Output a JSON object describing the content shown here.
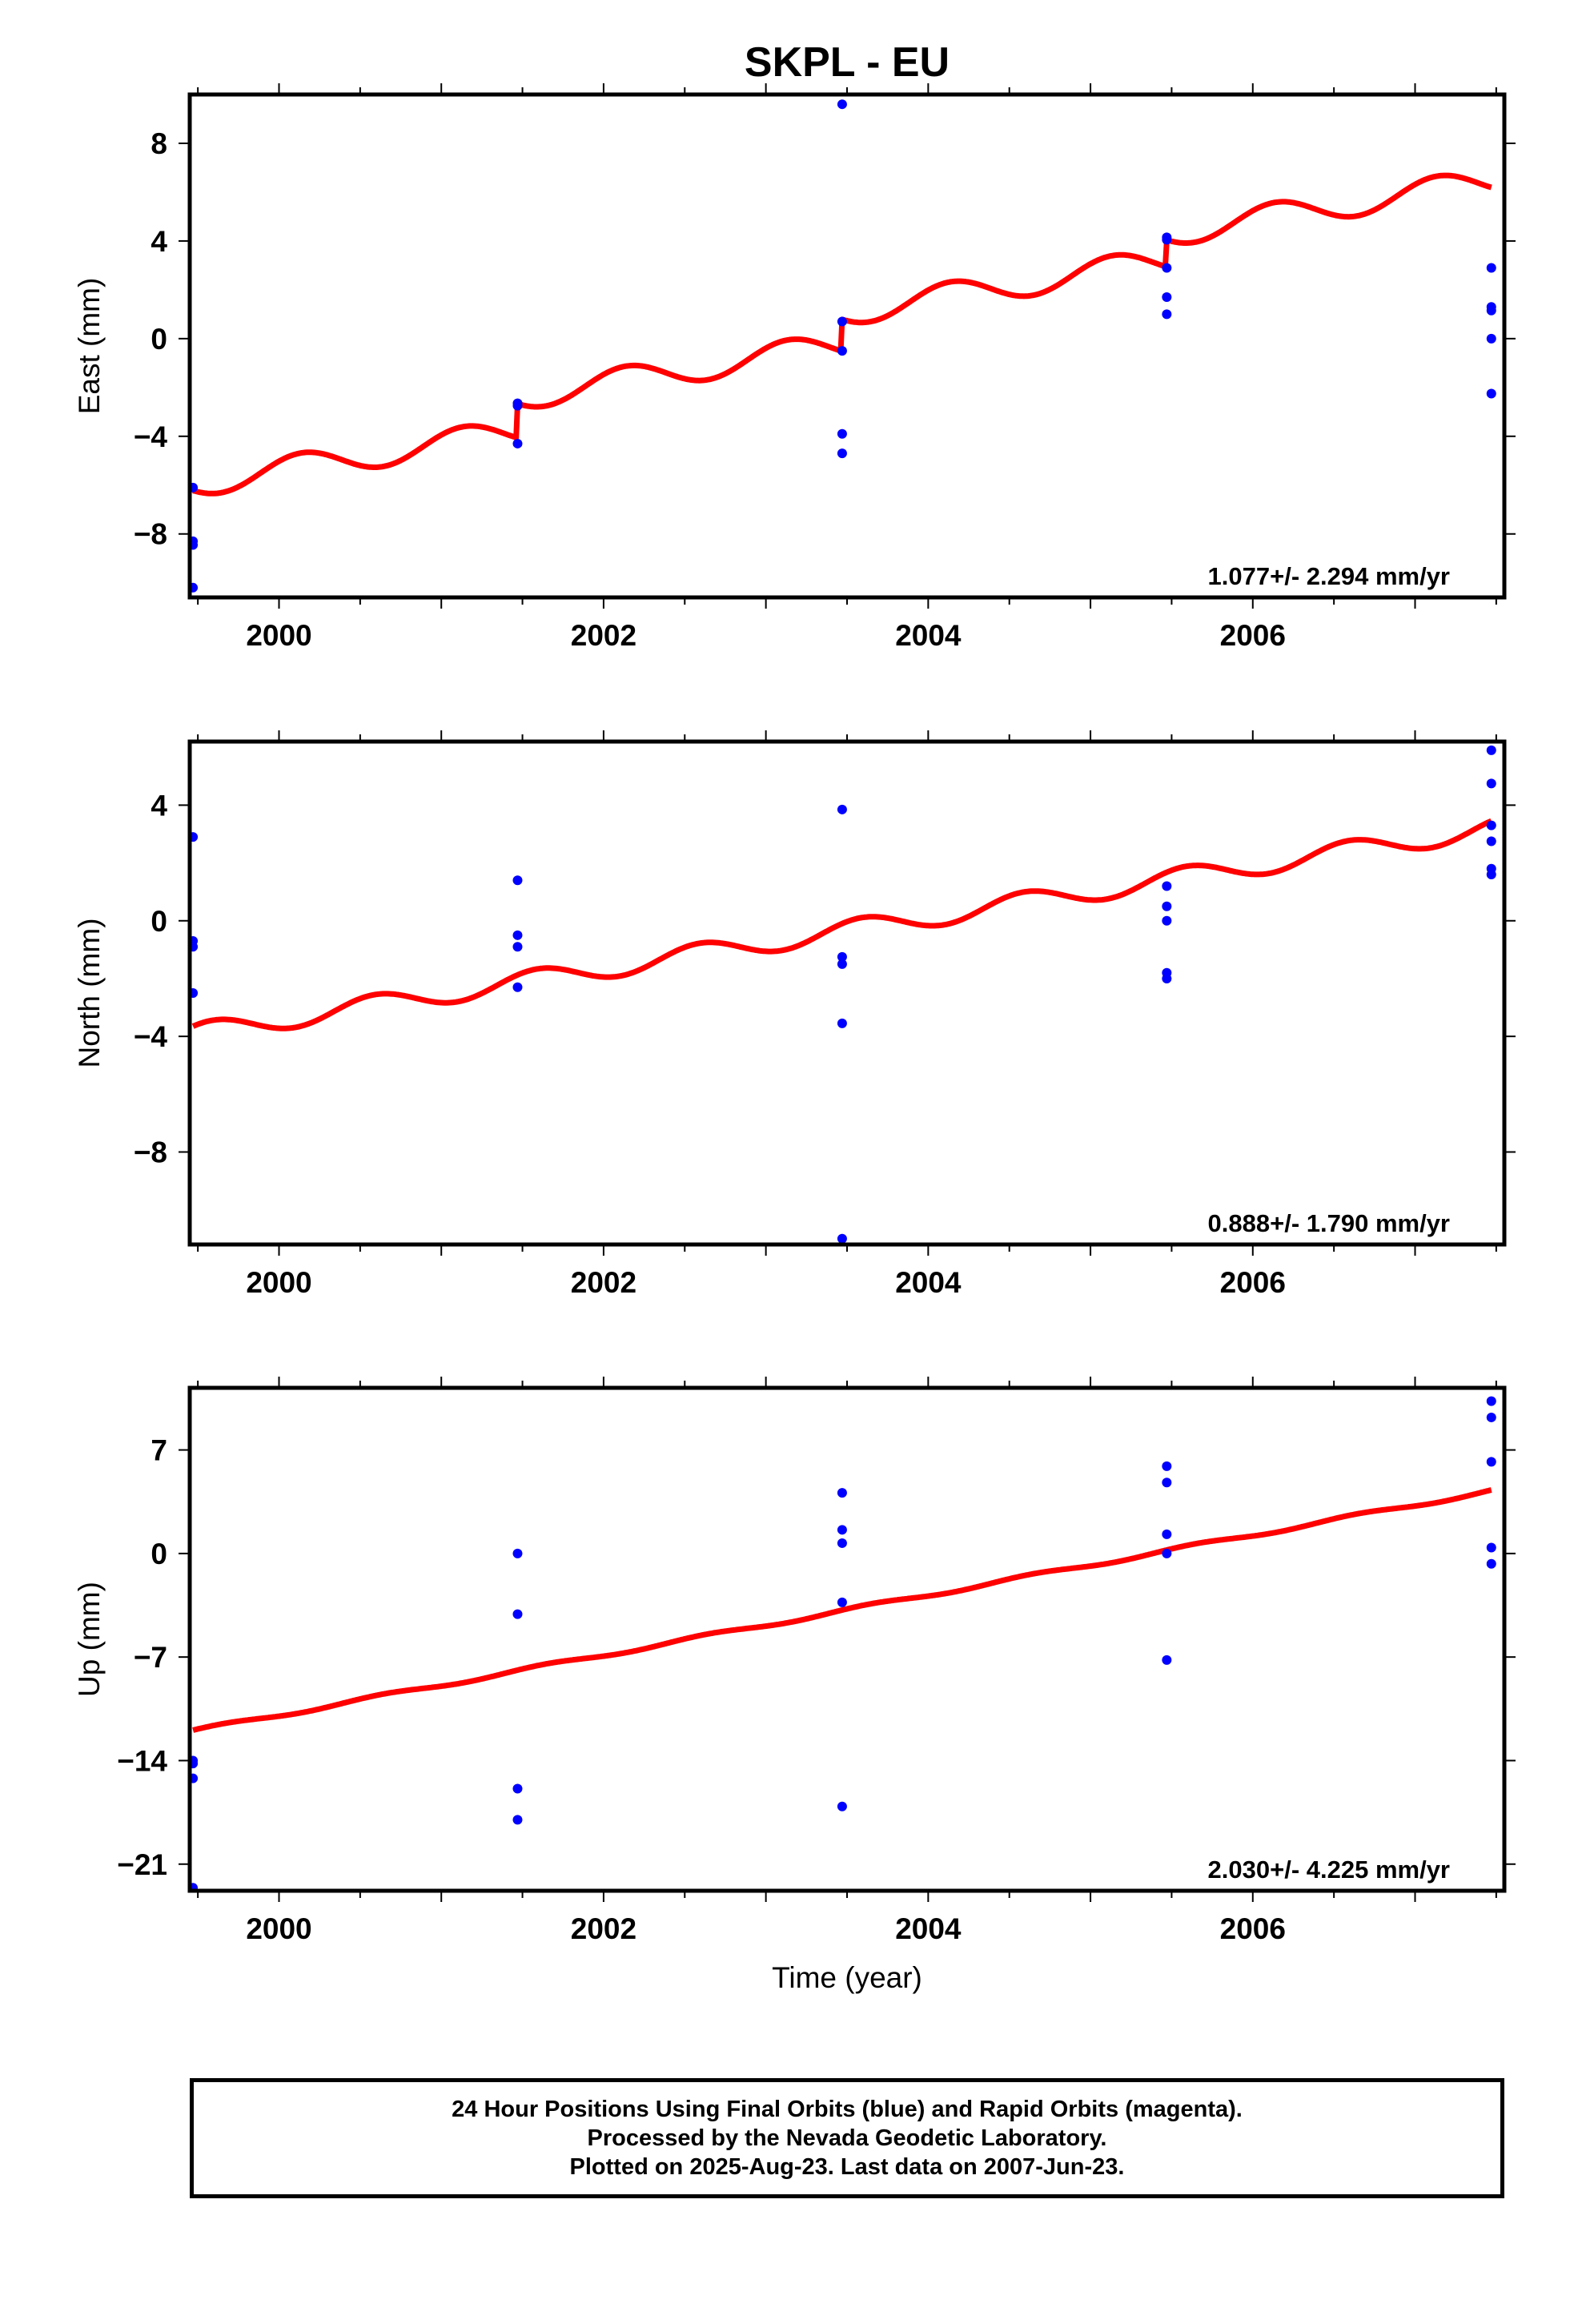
{
  "page": {
    "title": "SKPL - EU",
    "footer_lines": [
      "24 Hour Positions Using Final Orbits (blue) and Rapid Orbits (magenta).",
      "Processed by the Nevada Geodetic Laboratory.",
      "Plotted on 2025-Aug-23. Last data on 2007-Jun-23."
    ]
  },
  "chart_data": [
    {
      "type": "scatter",
      "ylabel": "East (mm)",
      "xlabel": "",
      "xlim": [
        1999.45,
        2007.55
      ],
      "ylim": [
        -10.6,
        10.0
      ],
      "xticks": [
        2000,
        2002,
        2004,
        2006
      ],
      "yticks": [
        8,
        4,
        0,
        -4,
        -8
      ],
      "ytick_labels": [
        "8",
        "4",
        "0",
        "−4",
        "−8"
      ],
      "rate_label": "1.077+/- 2.294 mm/yr",
      "points_color": "#0000ff",
      "fit_color": "#ff0000",
      "points": [
        {
          "x": 1999.47,
          "y": -6.1
        },
        {
          "x": 1999.47,
          "y": -8.3
        },
        {
          "x": 1999.47,
          "y": -8.45
        },
        {
          "x": 1999.47,
          "y": -10.2
        },
        {
          "x": 2001.47,
          "y": -2.65
        },
        {
          "x": 2001.47,
          "y": -2.75
        },
        {
          "x": 2001.47,
          "y": -4.3
        },
        {
          "x": 2003.47,
          "y": 9.6
        },
        {
          "x": 2003.47,
          "y": 0.7
        },
        {
          "x": 2003.47,
          "y": -0.5
        },
        {
          "x": 2003.47,
          "y": -3.9
        },
        {
          "x": 2003.47,
          "y": -4.7
        },
        {
          "x": 2005.47,
          "y": 4.15
        },
        {
          "x": 2005.47,
          "y": 4.05
        },
        {
          "x": 2005.47,
          "y": 2.9
        },
        {
          "x": 2005.47,
          "y": 1.7
        },
        {
          "x": 2005.47,
          "y": 1.0
        },
        {
          "x": 2007.47,
          "y": 2.9
        },
        {
          "x": 2007.47,
          "y": 1.3
        },
        {
          "x": 2007.47,
          "y": 1.15
        },
        {
          "x": 2007.47,
          "y": 0.0
        },
        {
          "x": 2007.47,
          "y": -2.25
        }
      ],
      "fit": {
        "x_start": 1999.47,
        "x_end": 2007.47,
        "y_at_start": -5.95,
        "rate": 1.077,
        "seasonal_amplitude": 0.55,
        "seasonal_phase": 3.66,
        "offsets": [
          {
            "x": 2001.47,
            "dy": 1.4
          },
          {
            "x": 2003.47,
            "dy": 1.3
          },
          {
            "x": 2005.47,
            "dy": 1.1
          }
        ]
      }
    },
    {
      "type": "scatter",
      "ylabel": "North (mm)",
      "xlabel": "",
      "xlim": [
        1999.45,
        2007.55
      ],
      "ylim": [
        -11.2,
        6.2
      ],
      "xticks": [
        2000,
        2002,
        2004,
        2006
      ],
      "yticks": [
        4,
        0,
        -4,
        -8
      ],
      "ytick_labels": [
        "4",
        "0",
        "−4",
        "−8"
      ],
      "rate_label": "0.888+/- 1.790 mm/yr",
      "points_color": "#0000ff",
      "fit_color": "#ff0000",
      "points": [
        {
          "x": 1999.47,
          "y": 2.9
        },
        {
          "x": 1999.47,
          "y": -0.7
        },
        {
          "x": 1999.47,
          "y": -0.9
        },
        {
          "x": 1999.47,
          "y": -2.5
        },
        {
          "x": 2001.47,
          "y": 1.4
        },
        {
          "x": 2001.47,
          "y": -0.5
        },
        {
          "x": 2001.47,
          "y": -0.9
        },
        {
          "x": 2001.47,
          "y": -2.3
        },
        {
          "x": 2003.47,
          "y": 3.85
        },
        {
          "x": 2003.47,
          "y": -1.25
        },
        {
          "x": 2003.47,
          "y": -1.5
        },
        {
          "x": 2003.47,
          "y": -3.55
        },
        {
          "x": 2003.47,
          "y": -11.0
        },
        {
          "x": 2005.47,
          "y": 1.2
        },
        {
          "x": 2005.47,
          "y": 0.5
        },
        {
          "x": 2005.47,
          "y": 0.0
        },
        {
          "x": 2005.47,
          "y": -1.8
        },
        {
          "x": 2005.47,
          "y": -2.0
        },
        {
          "x": 2007.47,
          "y": 5.9
        },
        {
          "x": 2007.47,
          "y": 4.75
        },
        {
          "x": 2007.47,
          "y": 3.3
        },
        {
          "x": 2007.47,
          "y": 2.75
        },
        {
          "x": 2007.47,
          "y": 1.8
        },
        {
          "x": 2007.47,
          "y": 1.6
        }
      ],
      "fit": {
        "x_start": 1999.47,
        "x_end": 2007.47,
        "y_at_start": -3.9,
        "rate": 0.888,
        "seasonal_amplitude": 0.35,
        "seasonal_phase": 0.8,
        "offsets": []
      }
    },
    {
      "type": "scatter",
      "ylabel": "Up (mm)",
      "xlabel": "Time (year)",
      "xlim": [
        1999.45,
        2007.55
      ],
      "ylim": [
        -22.8,
        11.2
      ],
      "xticks": [
        2000,
        2002,
        2004,
        2006
      ],
      "yticks": [
        7,
        0,
        -7,
        -14,
        -21
      ],
      "ytick_labels": [
        "7",
        "0",
        "−7",
        "−14",
        "−21"
      ],
      "rate_label": "2.030+/- 4.225 mm/yr",
      "points_color": "#0000ff",
      "fit_color": "#ff0000",
      "points": [
        {
          "x": 1999.47,
          "y": -14.0
        },
        {
          "x": 1999.47,
          "y": -14.2
        },
        {
          "x": 1999.47,
          "y": -15.2
        },
        {
          "x": 1999.47,
          "y": -22.6
        },
        {
          "x": 2001.47,
          "y": 0.0
        },
        {
          "x": 2001.47,
          "y": -4.1
        },
        {
          "x": 2001.47,
          "y": -15.9
        },
        {
          "x": 2001.47,
          "y": -18.0
        },
        {
          "x": 2003.47,
          "y": 4.1
        },
        {
          "x": 2003.47,
          "y": 1.6
        },
        {
          "x": 2003.47,
          "y": 0.7
        },
        {
          "x": 2003.47,
          "y": -3.3
        },
        {
          "x": 2003.47,
          "y": -17.1
        },
        {
          "x": 2005.47,
          "y": 5.9
        },
        {
          "x": 2005.47,
          "y": 4.8
        },
        {
          "x": 2005.47,
          "y": 1.3
        },
        {
          "x": 2005.47,
          "y": 0.0
        },
        {
          "x": 2005.47,
          "y": -7.2
        },
        {
          "x": 2007.47,
          "y": 10.3
        },
        {
          "x": 2007.47,
          "y": 9.2
        },
        {
          "x": 2007.47,
          "y": 6.2
        },
        {
          "x": 2007.47,
          "y": 0.4
        },
        {
          "x": 2007.47,
          "y": -0.7
        }
      ],
      "fit": {
        "x_start": 1999.47,
        "x_end": 2007.47,
        "y_at_start": -12.0,
        "rate": 2.03,
        "seasonal_amplitude": 0.12,
        "seasonal_phase": 0.5,
        "offsets": []
      }
    }
  ]
}
